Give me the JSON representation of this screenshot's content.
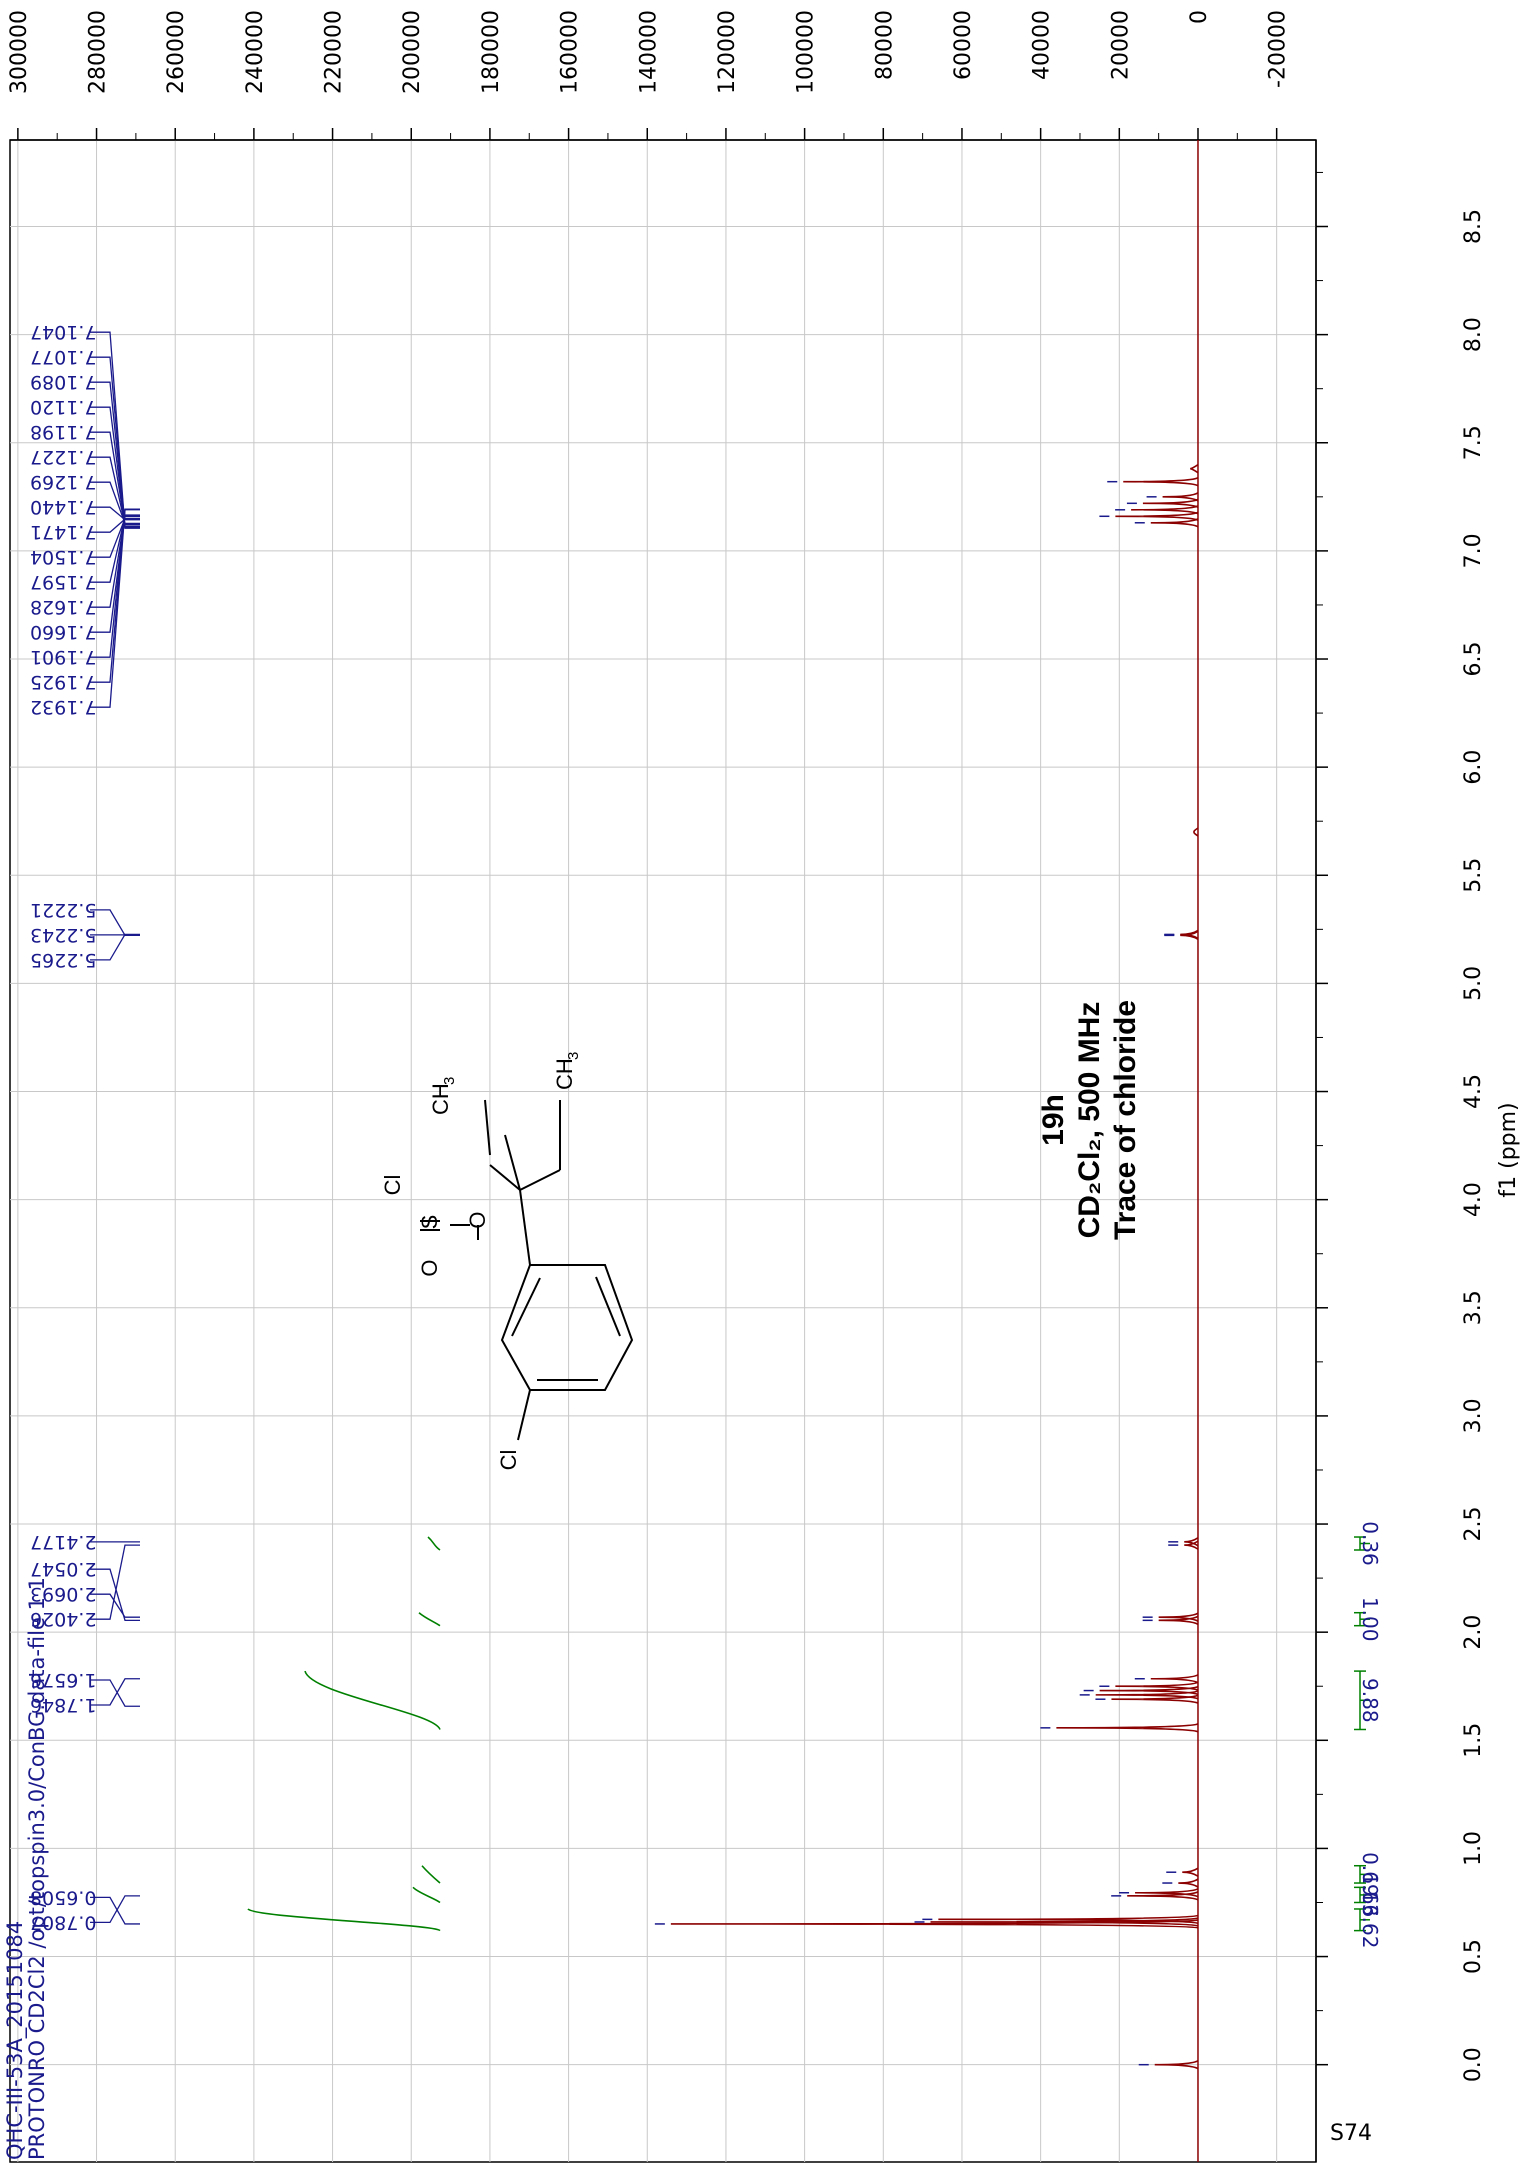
{
  "chart_data": {
    "type": "line",
    "title_lines": [
      "19h",
      "CD₂Cl₂, 500 MHz",
      "Trace of chloride"
    ],
    "xlabel": "f1 (ppm)",
    "ylabel": "",
    "xlim": [
      8.9,
      -0.45
    ],
    "ylim": [
      -30000,
      302000
    ],
    "x_ticks": [
      "0.0",
      "0.5",
      "1.0",
      "1.5",
      "2.0",
      "2.5",
      "3.0",
      "3.5",
      "4.0",
      "4.5",
      "5.0",
      "5.5",
      "6.0",
      "6.5",
      "7.0",
      "7.5",
      "8.0",
      "8.5"
    ],
    "y_ticks": [
      "-20000",
      "0",
      "20000",
      "40000",
      "60000",
      "80000",
      "100000",
      "120000",
      "140000",
      "160000",
      "180000",
      "200000",
      "220000",
      "240000",
      "260000",
      "280000",
      "300000"
    ],
    "grid": true,
    "peaks": [
      {
        "ppm": 0.0,
        "height": 11000
      },
      {
        "ppm": 0.6508,
        "height": 134000
      },
      {
        "ppm": 0.66,
        "height": 68000
      },
      {
        "ppm": 0.672,
        "height": 66000
      },
      {
        "ppm": 0.7807,
        "height": 18000
      },
      {
        "ppm": 0.795,
        "height": 16000
      },
      {
        "ppm": 0.84,
        "height": 5000
      },
      {
        "ppm": 0.89,
        "height": 4000
      },
      {
        "ppm": 1.5576,
        "height": 36000
      },
      {
        "ppm": 1.69,
        "height": 22000
      },
      {
        "ppm": 1.71,
        "height": 26000
      },
      {
        "ppm": 1.73,
        "height": 25000
      },
      {
        "ppm": 1.75,
        "height": 21000
      },
      {
        "ppm": 1.7846,
        "height": 12000
      },
      {
        "ppm": 2.0547,
        "height": 10000
      },
      {
        "ppm": 2.0693,
        "height": 10000
      },
      {
        "ppm": 2.4026,
        "height": 3500
      },
      {
        "ppm": 2.4177,
        "height": 3500
      },
      {
        "ppm": 5.2221,
        "height": 4500
      },
      {
        "ppm": 5.2243,
        "height": 4500
      },
      {
        "ppm": 5.2265,
        "height": 4500
      },
      {
        "ppm": 5.7,
        "height": 800
      },
      {
        "ppm": 7.13,
        "height": 12000
      },
      {
        "ppm": 7.16,
        "height": 21000
      },
      {
        "ppm": 7.19,
        "height": 17000
      },
      {
        "ppm": 7.22,
        "height": 14000
      },
      {
        "ppm": 7.25,
        "height": 9000
      },
      {
        "ppm": 7.32,
        "height": 19000
      },
      {
        "ppm": 7.38,
        "height": 2000
      }
    ],
    "peak_labels": [
      {
        "ppm": 0.6508,
        "text": "0.6508"
      },
      {
        "ppm": 0.7807,
        "text": "0.7807"
      },
      {
        "ppm": 1.6576,
        "text": "1.6576"
      },
      {
        "ppm": 1.7846,
        "text": "1.7846"
      },
      {
        "ppm": 2.0547,
        "text": "2.0547"
      },
      {
        "ppm": 2.0693,
        "text": "2.0693"
      },
      {
        "ppm": 2.4026,
        "text": "2.4026"
      },
      {
        "ppm": 2.4177,
        "text": "2.4177"
      },
      {
        "ppm": 5.2221,
        "text": "5.2221"
      },
      {
        "ppm": 5.2243,
        "text": "5.2243"
      },
      {
        "ppm": 5.2265,
        "text": "5.2265"
      },
      {
        "ppm": 7.1047,
        "text": "7.1047"
      },
      {
        "ppm": 7.1077,
        "text": "7.1077"
      },
      {
        "ppm": 7.1089,
        "text": "7.1089"
      },
      {
        "ppm": 7.112,
        "text": "7.1120"
      },
      {
        "ppm": 7.1198,
        "text": "7.1198"
      },
      {
        "ppm": 7.1227,
        "text": "7.1227"
      },
      {
        "ppm": 7.1269,
        "text": "7.1269"
      },
      {
        "ppm": 7.144,
        "text": "7.1440"
      },
      {
        "ppm": 7.1471,
        "text": "7.1471"
      },
      {
        "ppm": 7.1504,
        "text": "7.1504"
      },
      {
        "ppm": 7.1597,
        "text": "7.1597"
      },
      {
        "ppm": 7.1628,
        "text": "7.1628"
      },
      {
        "ppm": 7.166,
        "text": "7.1660"
      },
      {
        "ppm": 7.1901,
        "text": "7.1901"
      },
      {
        "ppm": 7.1925,
        "text": "7.1925"
      },
      {
        "ppm": 7.1932,
        "text": "7.1932"
      }
    ],
    "integrals": [
      {
        "from": 0.62,
        "to": 0.72,
        "value": "13.62",
        "rise": 0.62
      },
      {
        "from": 0.75,
        "to": 0.82,
        "value": "1.66",
        "rise": 0.07
      },
      {
        "from": 0.84,
        "to": 0.92,
        "value": "0.69",
        "rise": 0.04
      },
      {
        "from": 1.55,
        "to": 1.82,
        "value": "9.88",
        "rise": 0.43
      },
      {
        "from": 2.03,
        "to": 2.09,
        "value": "1.00",
        "rise": 0.05
      },
      {
        "from": 2.38,
        "to": 2.44,
        "value": "0.36",
        "rise": 0.02
      }
    ],
    "sample_lines": [
      "QHC-III-53A_20151084",
      "PROTONRO CD2Cl2 /opt/topspin3.0/ConBG.data-file 1 1"
    ],
    "page_label": "S74"
  },
  "structure": {
    "labels": {
      "cl_top": "Cl",
      "o_top": "O",
      "s": "S",
      "o_mid": "O",
      "ch3_a": "CH",
      "ch3_b": "CH",
      "sub3": "3",
      "cl_ring": "Cl"
    }
  },
  "colors": {
    "spectrum": "#8b0000",
    "integral": "#008000",
    "peak_label": "#1a1a8c",
    "grid": "#c8c8c8"
  }
}
